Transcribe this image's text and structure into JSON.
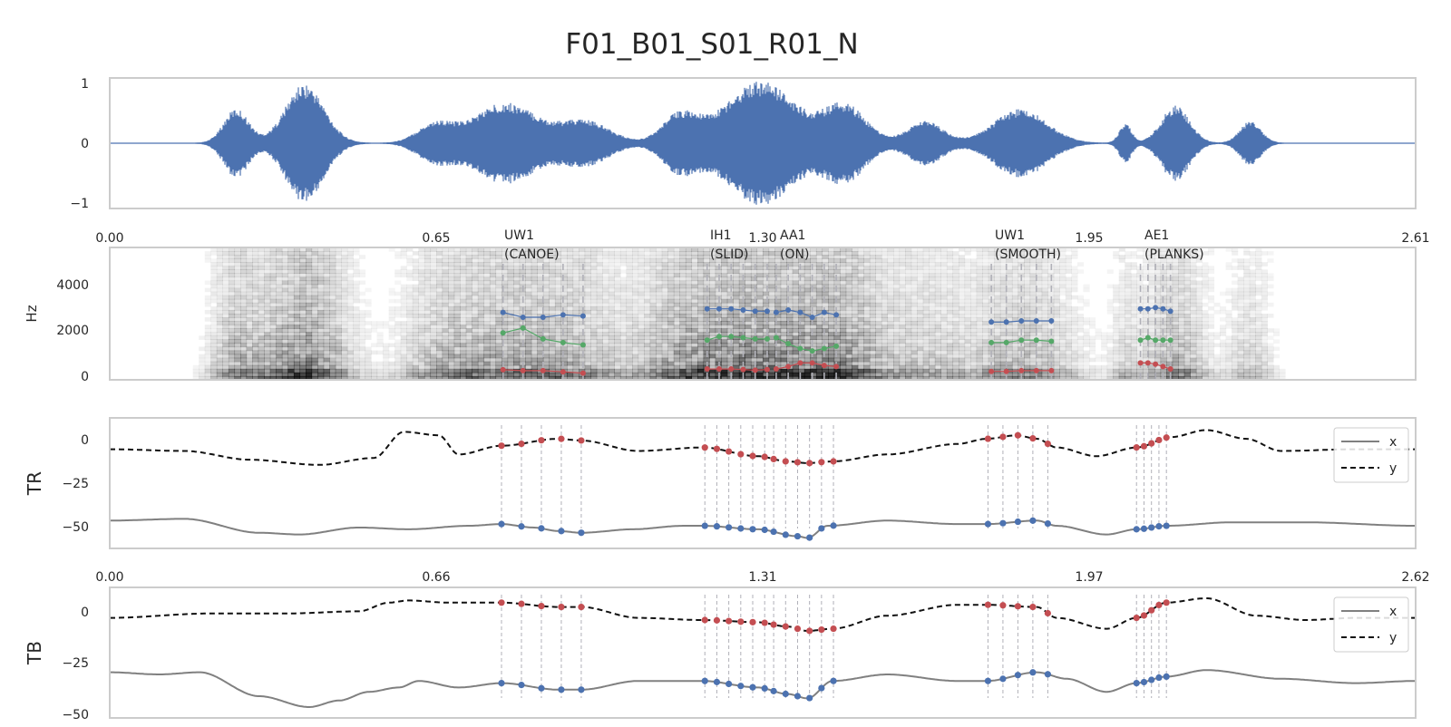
{
  "colors": {
    "background": "#ffffff",
    "frame": "#cccccc",
    "waveform": "#4c72b0",
    "x_line": "#808080",
    "y_line": "#111111",
    "f1_points": "#c44e52",
    "f2_points": "#55a868",
    "f3_points": "#4c72b0",
    "markers": "#b0b0b8",
    "spec_ink": "#000000"
  },
  "chart_data": {
    "title": "F01_B01_S01_R01_N",
    "type": "line",
    "panels": [
      {
        "id": "waveform",
        "type": "line",
        "xlim": [
          0,
          2.61
        ],
        "ylim": [
          -1.05,
          1.05
        ],
        "yticks": [
          1,
          0,
          -1
        ],
        "ytick_labels": [
          "1",
          "0",
          "−1"
        ],
        "bursts": [
          {
            "center": 0.253,
            "width": 0.035,
            "amp": 0.55
          },
          {
            "center": 0.39,
            "width": 0.055,
            "amp": 0.95
          },
          {
            "center": 0.65,
            "width": 0.05,
            "amp": 0.3
          },
          {
            "center": 0.79,
            "width": 0.09,
            "amp": 0.65
          },
          {
            "center": 0.95,
            "width": 0.07,
            "amp": 0.35
          },
          {
            "center": 1.14,
            "width": 0.05,
            "amp": 0.45
          },
          {
            "center": 1.3,
            "width": 0.1,
            "amp": 1.0
          },
          {
            "center": 1.47,
            "width": 0.06,
            "amp": 0.6
          },
          {
            "center": 1.63,
            "width": 0.05,
            "amp": 0.35
          },
          {
            "center": 1.82,
            "width": 0.075,
            "amp": 0.55
          },
          {
            "center": 2.03,
            "width": 0.018,
            "amp": 0.3
          },
          {
            "center": 2.13,
            "width": 0.04,
            "amp": 0.6
          },
          {
            "center": 2.28,
            "width": 0.03,
            "amp": 0.35
          }
        ]
      },
      {
        "id": "spectrogram",
        "type": "heatmap",
        "ylabel": "Hz",
        "xlim": [
          0,
          2.61
        ],
        "ylim": [
          0,
          5500
        ],
        "yticks": [
          4000,
          2000,
          0
        ],
        "top_ticks": [
          0.0,
          0.65,
          1.3,
          1.95,
          2.61
        ],
        "top_tick_labels": [
          "0.00",
          "0.65",
          "1.30",
          "1.95",
          "2.61"
        ],
        "vowels": [
          {
            "label": "UW1",
            "word": "(CANOE)",
            "t": [
              0.786,
              0.826,
              0.866,
              0.906,
              0.946
            ],
            "F1": [
              420,
              380,
              380,
              330,
              280
            ],
            "F2": [
              1950,
              2150,
              1700,
              1550,
              1450
            ],
            "F3": [
              2800,
              2600,
              2600,
              2700,
              2650
            ]
          },
          {
            "label": "IH1",
            "word": "(SLID)",
            "t": [
              1.194,
              1.218,
              1.242,
              1.266,
              1.29,
              1.314
            ],
            "F1": [
              450,
              450,
              450,
              430,
              400,
              430
            ],
            "F2": [
              1650,
              1800,
              1800,
              1750,
              1700,
              1700
            ],
            "F3": [
              2950,
              2950,
              2950,
              2900,
              2850,
              2850
            ]
          },
          {
            "label": "AA1",
            "word": "(ON)",
            "t": [
              1.332,
              1.356,
              1.38,
              1.404,
              1.428,
              1.452
            ],
            "F1": [
              450,
              550,
              700,
              700,
              600,
              550
            ],
            "F2": [
              1750,
              1500,
              1300,
              1200,
              1300,
              1400
            ],
            "F3": [
              2800,
              2900,
              2800,
              2600,
              2800,
              2700
            ]
          },
          {
            "label": "UW1",
            "word": "(SMOOTH)",
            "t": [
              1.762,
              1.792,
              1.822,
              1.852,
              1.882
            ],
            "F1": [
              350,
              350,
              380,
              380,
              380
            ],
            "F2": [
              1550,
              1550,
              1650,
              1650,
              1600
            ],
            "F3": [
              2400,
              2400,
              2450,
              2450,
              2450
            ]
          },
          {
            "label": "AE1",
            "word": "(PLANKS)",
            "t": [
              2.06,
              2.075,
              2.09,
              2.105,
              2.12
            ],
            "F1": [
              700,
              700,
              650,
              550,
              450
            ],
            "F2": [
              1650,
              1750,
              1650,
              1650,
              1650
            ],
            "F3": [
              2950,
              2950,
              3000,
              2950,
              2850
            ]
          }
        ]
      },
      {
        "id": "TR",
        "type": "line",
        "ylabel": "TR",
        "xlim": [
          0,
          2.62
        ],
        "ylim": [
          -62,
          13
        ],
        "yticks": [
          0,
          -25,
          -50
        ],
        "ytick_labels": [
          "0",
          "−25",
          "−50"
        ],
        "legend": {
          "position": "right",
          "entries": [
            "x",
            "y"
          ]
        },
        "series": [
          {
            "name": "x",
            "style": "solid",
            "t": [
              0.0,
              0.15,
              0.3,
              0.38,
              0.5,
              0.6,
              0.72,
              0.786,
              0.85,
              0.9,
              0.946,
              1.05,
              1.15,
              1.19,
              1.3,
              1.38,
              1.4,
              1.44,
              1.56,
              1.7,
              1.76,
              1.86,
              1.9,
              2.0,
              2.06,
              2.12,
              2.25,
              2.4,
              2.62
            ],
            "y": [
              -46,
              -45,
              -53,
              -54,
              -50,
              -51,
              -49,
              -48,
              -50,
              -52,
              -53,
              -51,
              -49,
              -49,
              -51,
              -55,
              -56,
              -49,
              -46,
              -48,
              -48,
              -46,
              -49,
              -54,
              -51,
              -49,
              -47,
              -47,
              -49
            ]
          },
          {
            "name": "y",
            "style": "dashed",
            "t": [
              0.0,
              0.15,
              0.28,
              0.42,
              0.53,
              0.59,
              0.66,
              0.7,
              0.786,
              0.9,
              0.946,
              1.06,
              1.19,
              1.3,
              1.36,
              1.4,
              1.45,
              1.56,
              1.7,
              1.76,
              1.82,
              1.86,
              1.9,
              1.98,
              2.06,
              2.13,
              2.2,
              2.28,
              2.35,
              2.5,
              2.62
            ],
            "y": [
              -5,
              -6,
              -11,
              -14,
              -10,
              5,
              3,
              -8,
              -3,
              1,
              0,
              -6,
              -4,
              -9,
              -12,
              -13,
              -12,
              -8,
              -2,
              1,
              3,
              1,
              -4,
              -9,
              -4,
              2,
              6,
              1,
              -6,
              -5,
              -5
            ]
          }
        ],
        "points_t": [
          0.786,
          0.826,
          0.866,
          0.906,
          0.946,
          1.194,
          1.218,
          1.242,
          1.266,
          1.29,
          1.314,
          1.332,
          1.356,
          1.38,
          1.404,
          1.428,
          1.452,
          1.762,
          1.792,
          1.822,
          1.852,
          1.882,
          2.06,
          2.075,
          2.09,
          2.105,
          2.12
        ]
      },
      {
        "id": "TB",
        "type": "line",
        "ylabel": "TB",
        "xlim": [
          0,
          2.62
        ],
        "ylim": [
          -50,
          10
        ],
        "yticks": [
          0,
          -25,
          -50
        ],
        "ytick_labels": [
          "0",
          "−25",
          "−50"
        ],
        "top_ticks": [
          0.0,
          0.66,
          1.31,
          1.97,
          2.62
        ],
        "top_tick_labels": [
          "0.00",
          "0.66",
          "1.31",
          "1.97",
          "2.62"
        ],
        "legend": {
          "position": "right",
          "entries": [
            "x",
            "y"
          ]
        },
        "series": [
          {
            "name": "x",
            "style": "solid",
            "t": [
              0.0,
              0.1,
              0.18,
              0.3,
              0.4,
              0.46,
              0.52,
              0.58,
              0.62,
              0.7,
              0.786,
              0.9,
              0.946,
              1.06,
              1.19,
              1.3,
              1.36,
              1.4,
              1.45,
              1.56,
              1.7,
              1.76,
              1.86,
              1.92,
              2.0,
              2.06,
              2.12,
              2.2,
              2.35,
              2.5,
              2.62
            ],
            "y": [
              -29,
              -30,
              -29,
              -40,
              -45,
              -42,
              -38,
              -36,
              -33,
              -36,
              -34,
              -37,
              -37,
              -33,
              -33,
              -36,
              -39,
              -41,
              -33,
              -30,
              -33,
              -33,
              -29,
              -32,
              -38,
              -34,
              -31,
              -28,
              -32,
              -34,
              -33
            ]
          },
          {
            "name": "y",
            "style": "dashed",
            "t": [
              0.0,
              0.2,
              0.35,
              0.5,
              0.56,
              0.6,
              0.68,
              0.786,
              0.9,
              0.946,
              1.06,
              1.19,
              1.3,
              1.36,
              1.4,
              1.45,
              1.56,
              1.7,
              1.76,
              1.86,
              1.9,
              2.0,
              2.06,
              2.12,
              2.2,
              2.3,
              2.4,
              2.5,
              2.62
            ],
            "y": [
              -4,
              -2,
              -2,
              -1,
              3,
              4,
              3,
              3,
              1,
              1,
              -4,
              -5,
              -6,
              -8,
              -10,
              -9,
              -3,
              2,
              2,
              1,
              -4,
              -9,
              -4,
              3,
              5,
              -3,
              -5,
              -4,
              -4
            ]
          }
        ],
        "points_t": [
          0.786,
          0.826,
          0.866,
          0.906,
          0.946,
          1.194,
          1.218,
          1.242,
          1.266,
          1.29,
          1.314,
          1.332,
          1.356,
          1.38,
          1.404,
          1.428,
          1.452,
          1.762,
          1.792,
          1.822,
          1.852,
          1.882,
          2.06,
          2.075,
          2.09,
          2.105,
          2.12
        ]
      }
    ]
  }
}
